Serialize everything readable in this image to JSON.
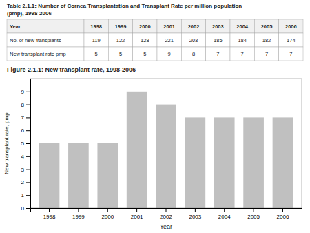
{
  "chart_data": {
    "type": "bar",
    "title": "Figure 2.1.1: New transplant rate, 1998-2006",
    "categories": [
      "1998",
      "1999",
      "2000",
      "2001",
      "2002",
      "2003",
      "2004",
      "2005",
      "2006"
    ],
    "values": [
      5,
      5,
      5,
      9,
      8,
      7,
      7,
      7,
      7
    ],
    "color": "#c0c0c0",
    "xlabel": "Year",
    "ylabel": "New transplant rate, pmp",
    "ylim": [
      0,
      10
    ],
    "yticks": [
      0,
      1,
      2,
      3,
      4,
      5,
      6,
      7,
      8,
      9
    ],
    "grid": false
  },
  "table": {
    "title_lines": [
      "Table 2.1.1: Number of Cornea Transplantation and Transplant Rate per million population",
      "(pmp), 1998-2006"
    ],
    "columns": [
      "Year",
      "1998",
      "1999",
      "2000",
      "2001",
      "2002",
      "2003",
      "2004",
      "2005",
      "2006"
    ],
    "rows": [
      {
        "label": "No. of new transplants",
        "values": [
          119,
          122,
          128,
          221,
          203,
          185,
          184,
          182,
          174
        ]
      },
      {
        "label": "New transplant rate pmp",
        "values": [
          5,
          5,
          5,
          9,
          8,
          7,
          7,
          7,
          7
        ]
      }
    ]
  }
}
